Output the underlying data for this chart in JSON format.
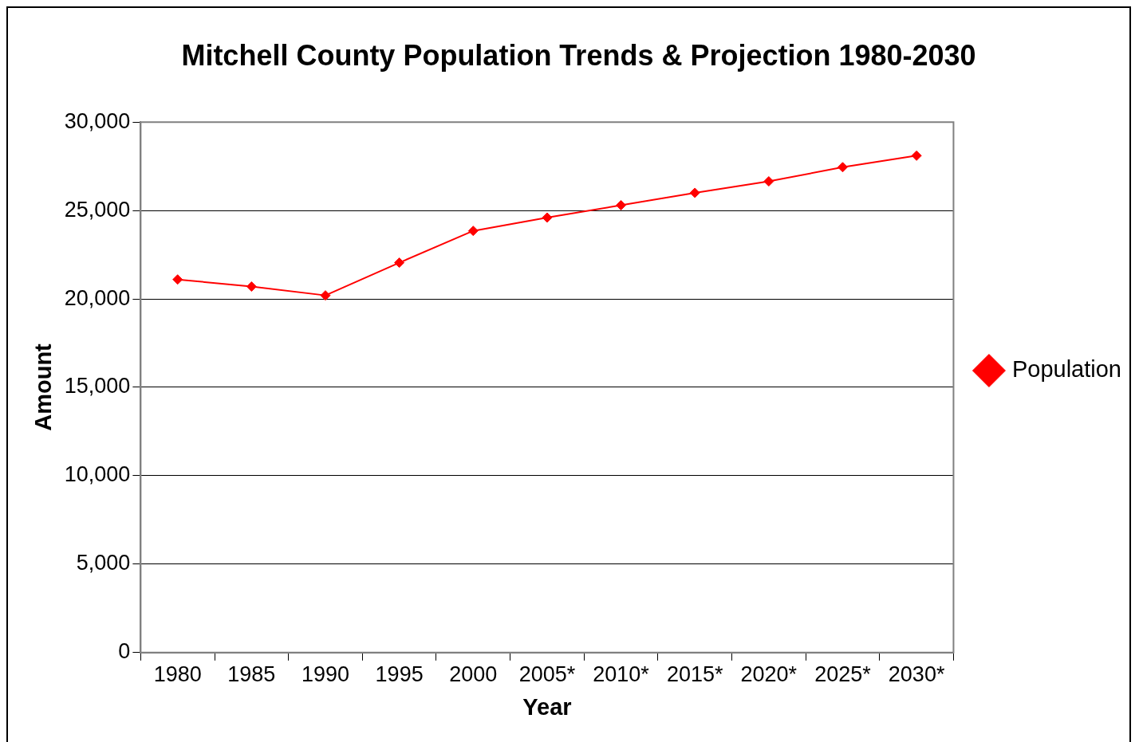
{
  "chart_data": {
    "type": "line",
    "title": "Mitchell County Population Trends & Projection 1980-2030",
    "xlabel": "Year",
    "ylabel": "Amount",
    "categories": [
      "1980",
      "1985",
      "1990",
      "1995",
      "2000",
      "2005*",
      "2010*",
      "2015*",
      "2020*",
      "2025*",
      "2030*"
    ],
    "series": [
      {
        "name": "Population",
        "color": "#ff0000",
        "values": [
          21100,
          20700,
          20200,
          22050,
          23850,
          24600,
          25300,
          26000,
          26650,
          27450,
          28100
        ]
      }
    ],
    "ylim": [
      0,
      30000
    ],
    "yticks": [
      {
        "value": 0,
        "label": "0"
      },
      {
        "value": 5000,
        "label": "5,000"
      },
      {
        "value": 10000,
        "label": "10,000"
      },
      {
        "value": 15000,
        "label": "15,000"
      },
      {
        "value": 20000,
        "label": "20,000"
      },
      {
        "value": 25000,
        "label": "25,000"
      },
      {
        "value": 30000,
        "label": "30,000"
      }
    ],
    "grid": "y",
    "legend": "right",
    "marker": "diamond",
    "line_style": "solid"
  }
}
